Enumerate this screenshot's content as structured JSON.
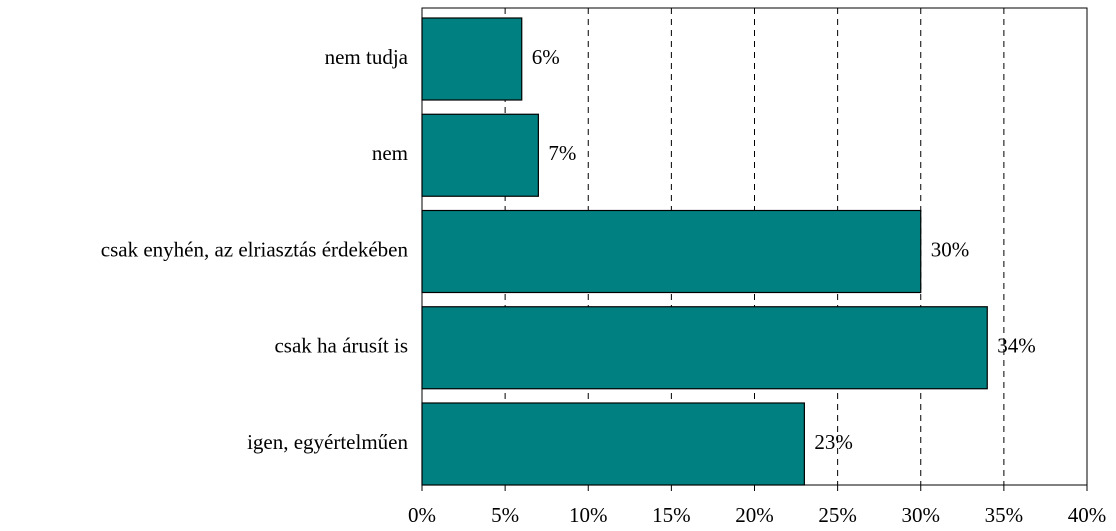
{
  "chart_data": {
    "type": "bar",
    "orientation": "horizontal",
    "categories": [
      "nem tudja",
      "nem",
      "csak enyhén, az elriasztás érdekében",
      "csak ha árusít is",
      "igen, egyértelműen"
    ],
    "values": [
      6,
      7,
      30,
      34,
      23
    ],
    "value_labels": [
      "6%",
      "7%",
      "30%",
      "34%",
      "23%"
    ],
    "color": "#008080",
    "xlim": [
      0,
      40
    ],
    "xticks": [
      {
        "value": 0,
        "label": "0%"
      },
      {
        "value": 5,
        "label": "5%"
      },
      {
        "value": 10,
        "label": "10%"
      },
      {
        "value": 15,
        "label": "15%"
      },
      {
        "value": 20,
        "label": "20%"
      },
      {
        "value": 25,
        "label": "25%"
      },
      {
        "value": 30,
        "label": "30%"
      },
      {
        "value": 35,
        "label": "35%"
      },
      {
        "value": 40,
        "label": "40%"
      }
    ],
    "grid": true
  }
}
